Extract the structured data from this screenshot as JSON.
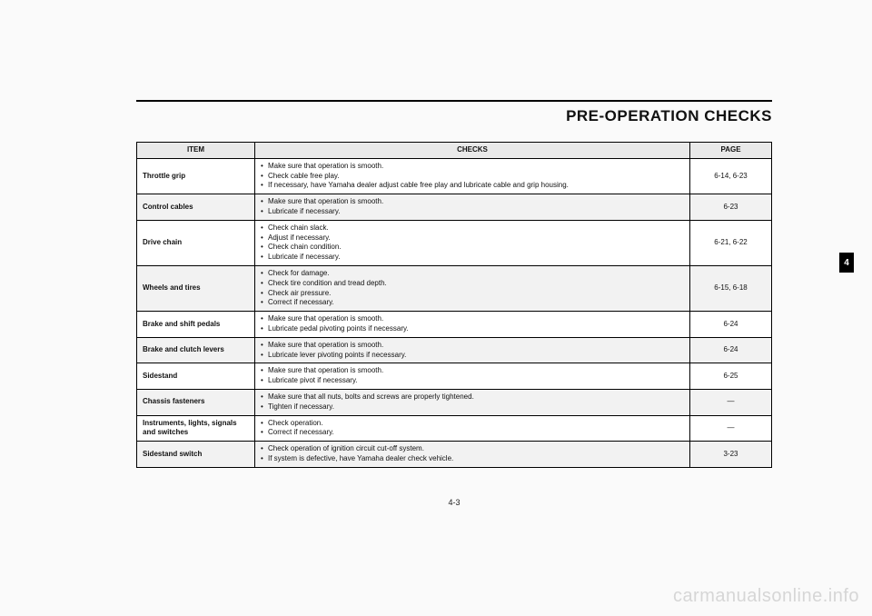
{
  "title": "PRE-OPERATION CHECKS",
  "tab": "4",
  "page_num": "4-3",
  "watermark": "carmanualsonline.info",
  "table": {
    "headers": {
      "item": "ITEM",
      "checks": "CHECKS",
      "page": "PAGE"
    },
    "rows": [
      {
        "item": "Throttle grip",
        "checks": [
          "Make sure that operation is smooth.",
          "Check cable free play.",
          "If necessary, have Yamaha dealer adjust cable free play and lubricate cable and grip housing."
        ],
        "page": "6-14, 6-23",
        "alt": false
      },
      {
        "item": "Control cables",
        "checks": [
          "Make sure that operation is smooth.",
          "Lubricate if necessary."
        ],
        "page": "6-23",
        "alt": true
      },
      {
        "item": "Drive chain",
        "checks": [
          "Check chain slack.",
          "Adjust if necessary.",
          "Check chain condition.",
          "Lubricate if necessary."
        ],
        "page": "6-21, 6-22",
        "alt": false
      },
      {
        "item": "Wheels and tires",
        "checks": [
          "Check for damage.",
          "Check tire condition and tread depth.",
          "Check air pressure.",
          "Correct if necessary."
        ],
        "page": "6-15, 6-18",
        "alt": true
      },
      {
        "item": "Brake and shift pedals",
        "checks": [
          "Make sure that operation is smooth.",
          "Lubricate pedal pivoting points if necessary."
        ],
        "page": "6-24",
        "alt": false
      },
      {
        "item": "Brake and clutch levers",
        "checks": [
          "Make sure that operation is smooth.",
          "Lubricate lever pivoting points if necessary."
        ],
        "page": "6-24",
        "alt": true
      },
      {
        "item": "Sidestand",
        "checks": [
          "Make sure that operation is smooth.",
          "Lubricate pivot if necessary."
        ],
        "page": "6-25",
        "alt": false
      },
      {
        "item": "Chassis fasteners",
        "checks": [
          "Make sure that all nuts, bolts and screws are properly tightened.",
          "Tighten if necessary."
        ],
        "page": "—",
        "alt": true
      },
      {
        "item": "Instruments, lights, signals and switches",
        "checks": [
          "Check operation.",
          "Correct if necessary."
        ],
        "page": "—",
        "alt": false
      },
      {
        "item": "Sidestand switch",
        "checks": [
          "Check operation of ignition circuit cut-off system.",
          "If system is defective, have Yamaha dealer check vehicle."
        ],
        "page": "3-23",
        "alt": true
      }
    ]
  }
}
